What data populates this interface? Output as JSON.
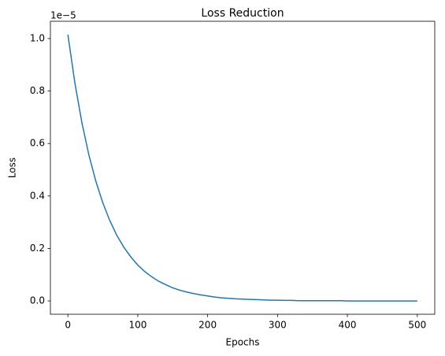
{
  "chart_data": {
    "type": "line",
    "title": "Loss Reduction",
    "xlabel": "Epochs",
    "ylabel": "Loss",
    "y_offset_label": "1e−5",
    "x": [
      0,
      10,
      20,
      30,
      40,
      50,
      60,
      70,
      80,
      90,
      100,
      110,
      120,
      130,
      140,
      150,
      160,
      170,
      180,
      190,
      200,
      210,
      220,
      230,
      240,
      250,
      260,
      270,
      280,
      290,
      300,
      310,
      320,
      330,
      340,
      350,
      360,
      370,
      380,
      390,
      400,
      410,
      420,
      430,
      440,
      450,
      460,
      470,
      480,
      490,
      500
    ],
    "series": [
      {
        "color": "#1f77b4",
        "values": [
          1.015,
          0.831,
          0.68,
          0.557,
          0.456,
          0.374,
          0.306,
          0.25,
          0.205,
          0.168,
          0.137,
          0.112,
          0.092,
          0.075,
          0.062,
          0.05,
          0.041,
          0.034,
          0.028,
          0.023,
          0.019,
          0.015,
          0.012,
          0.01,
          0.008,
          0.007,
          0.006,
          0.005,
          0.004,
          0.003,
          0.003,
          0.002,
          0.002,
          0.001,
          0.001,
          0.001,
          0.001,
          0.001,
          0.001,
          0.001,
          0,
          0,
          0,
          0,
          0,
          0,
          0,
          0,
          0,
          0,
          0
        ]
      }
    ],
    "xlim": [
      -25,
      525
    ],
    "xticks": [
      0,
      100,
      200,
      300,
      400,
      500
    ],
    "ylim": [
      -0.0508,
      1.0658
    ],
    "yticks": [
      {
        "value": 0,
        "label": "0.0"
      },
      0.2,
      0.4,
      0.6,
      0.8,
      {
        "value": 1,
        "label": "1.0"
      }
    ]
  }
}
